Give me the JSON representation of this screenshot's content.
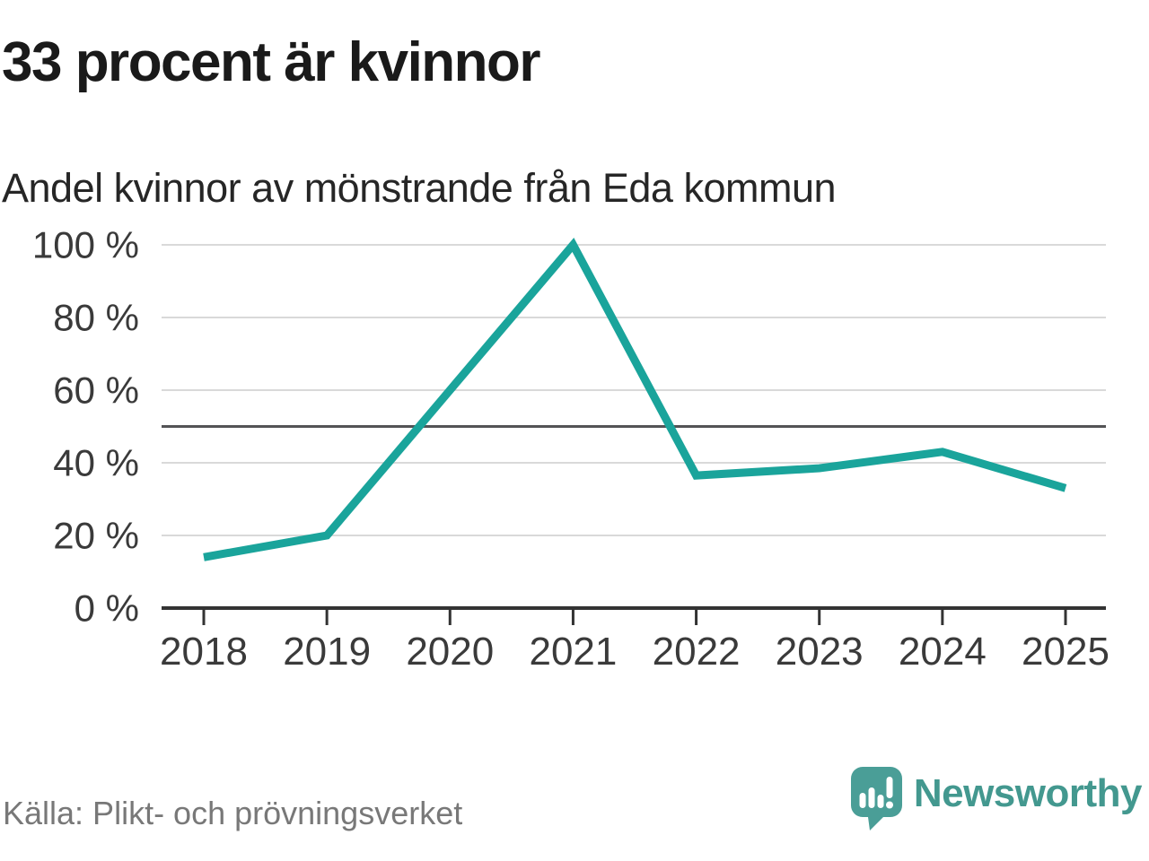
{
  "header": {
    "title": "33 procent är kvinnor",
    "subtitle": "Andel kvinnor av mönstrande från Eda kommun"
  },
  "chart_data": {
    "type": "line",
    "title": "33 procent är kvinnor",
    "subtitle": "Andel kvinnor av mönstrande från Eda kommun",
    "x": [
      2018,
      2019,
      2020,
      2021,
      2022,
      2023,
      2024,
      2025
    ],
    "series": [
      {
        "name": "Andel kvinnor av mönstrande",
        "values": [
          14,
          20,
          60,
          100,
          36.5,
          38.5,
          43,
          33
        ]
      }
    ],
    "xlabel": "",
    "ylabel": "",
    "ylim": [
      0,
      100
    ],
    "yticks": [
      0,
      20,
      40,
      60,
      80,
      100
    ],
    "ytick_format": "{v} %",
    "reference_line": 50,
    "grid": "horizontal",
    "legend": "none",
    "line_color": "#1aa49b"
  },
  "footer": {
    "source": "Källa: Plikt- och prövningsverket",
    "logo_text": "Newsworthy"
  },
  "colors": {
    "line": "#1aa49b",
    "grid": "#d9d9d9",
    "reference": "#535355",
    "axis": "#333333",
    "axis_text": "#3a3a3a",
    "logo": "#4a9e97",
    "wordmark": "#43988f"
  }
}
